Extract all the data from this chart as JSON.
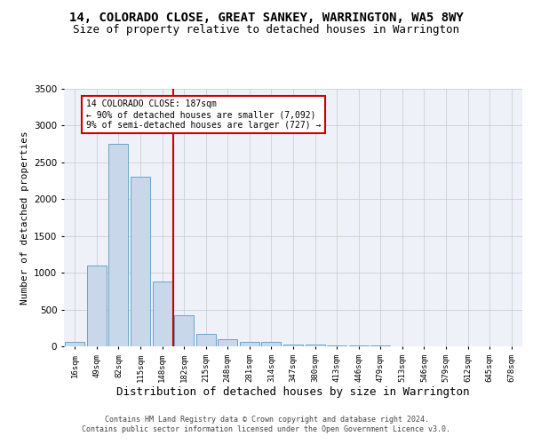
{
  "title": "14, COLORADO CLOSE, GREAT SANKEY, WARRINGTON, WA5 8WY",
  "subtitle": "Size of property relative to detached houses in Warrington",
  "xlabel": "Distribution of detached houses by size in Warrington",
  "ylabel": "Number of detached properties",
  "bar_color": "#c8d8ea",
  "bar_edge_color": "#5a9abf",
  "bar_categories": [
    "16sqm",
    "49sqm",
    "82sqm",
    "115sqm",
    "148sqm",
    "182sqm",
    "215sqm",
    "248sqm",
    "281sqm",
    "314sqm",
    "347sqm",
    "380sqm",
    "413sqm",
    "446sqm",
    "479sqm",
    "513sqm",
    "546sqm",
    "579sqm",
    "612sqm",
    "645sqm",
    "678sqm"
  ],
  "bar_values": [
    60,
    1100,
    2750,
    2300,
    880,
    420,
    165,
    95,
    60,
    55,
    30,
    25,
    18,
    12,
    8,
    5,
    3,
    2,
    1,
    1,
    0
  ],
  "vline_index": 5,
  "vline_color": "#cc0000",
  "annotation_text": "14 COLORADO CLOSE: 187sqm\n← 90% of detached houses are smaller (7,092)\n9% of semi-detached houses are larger (727) →",
  "annotation_box_color": "#cc0000",
  "ylim": [
    0,
    3500
  ],
  "yticks": [
    0,
    500,
    1000,
    1500,
    2000,
    2500,
    3000,
    3500
  ],
  "bg_color": "#eef2f8",
  "footer": "Contains HM Land Registry data © Crown copyright and database right 2024.\nContains public sector information licensed under the Open Government Licence v3.0.",
  "title_fontsize": 10,
  "subtitle_fontsize": 9,
  "xlabel_fontsize": 9,
  "ylabel_fontsize": 8
}
